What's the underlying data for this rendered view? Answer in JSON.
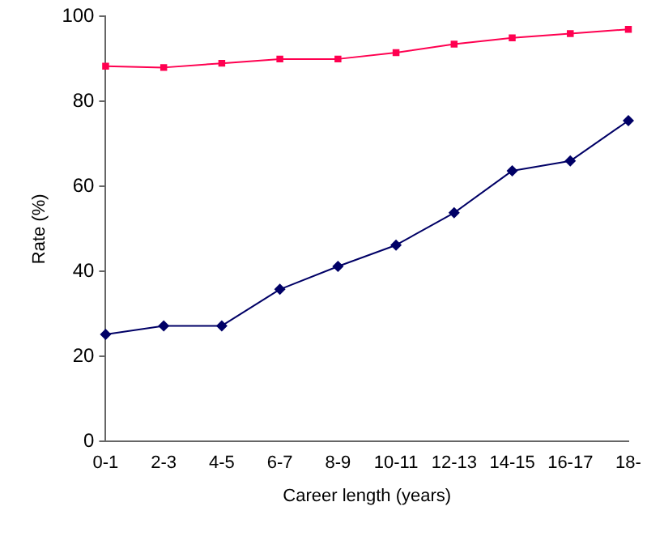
{
  "chart_data": {
    "type": "line",
    "xlabel": "Career length (years)",
    "ylabel": "Rate (%)",
    "categories": [
      "0-1",
      "2-3",
      "4-5",
      "6-7",
      "8-9",
      "10-11",
      "12-13",
      "14-15",
      "16-17",
      "18-"
    ],
    "series": [
      {
        "color": "#ff0050",
        "marker": "square",
        "values": [
          88.3,
          88,
          89,
          90,
          90,
          91.5,
          93.5,
          95,
          96,
          97
        ]
      },
      {
        "color": "#000066",
        "marker": "diamond",
        "values": [
          25.2,
          27.2,
          27.2,
          35.8,
          41.2,
          46.2,
          53.8,
          63.7,
          66,
          75.5
        ]
      }
    ],
    "ylim": [
      0,
      100
    ],
    "yticks": [
      0,
      20,
      40,
      60,
      80,
      100
    ],
    "grid": false,
    "legend": false,
    "line_style": "solid"
  }
}
